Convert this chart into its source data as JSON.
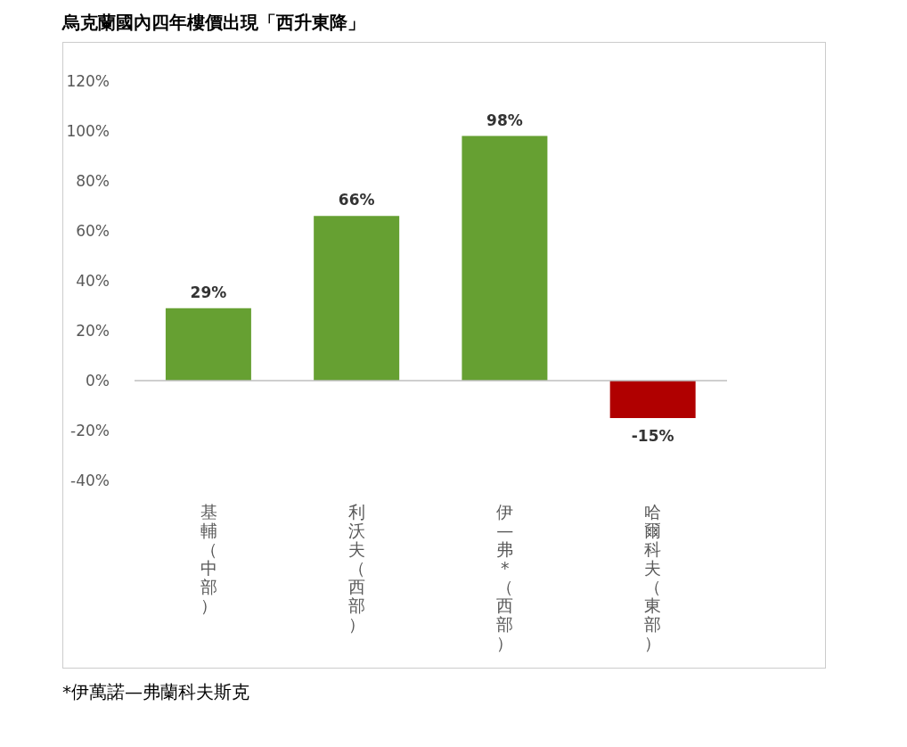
{
  "chart_data": {
    "type": "bar",
    "title": "烏克蘭國內四年樓價出現「西升東降」",
    "categories": [
      "基輔（中部）",
      "利沃夫（西部）",
      "伊—弗*（西部）",
      "哈爾科夫（東部）"
    ],
    "values": [
      29,
      66,
      98,
      -15
    ],
    "colors": [
      "#66a032",
      "#66a032",
      "#66a032",
      "#b00000"
    ],
    "value_labels": [
      "29%",
      "66%",
      "98%",
      "-15%"
    ],
    "ylim": [
      -40,
      120
    ],
    "yticks": [
      {
        "value": -40,
        "label": "-40%"
      },
      {
        "value": -20,
        "label": "-20%"
      },
      {
        "value": 0,
        "label": "0%"
      },
      {
        "value": 20,
        "label": "20%"
      },
      {
        "value": 40,
        "label": "40%"
      },
      {
        "value": 60,
        "label": "60%"
      },
      {
        "value": 80,
        "label": "80%"
      },
      {
        "value": 100,
        "label": "100%"
      },
      {
        "value": 120,
        "label": "120%"
      }
    ],
    "grid": false,
    "ref_lines": [
      {
        "axis": "y",
        "value": 0,
        "color": "#bfbfbf"
      }
    ],
    "legend": false,
    "annotations": [
      "*伊萬諾—弗蘭科夫斯克"
    ]
  }
}
